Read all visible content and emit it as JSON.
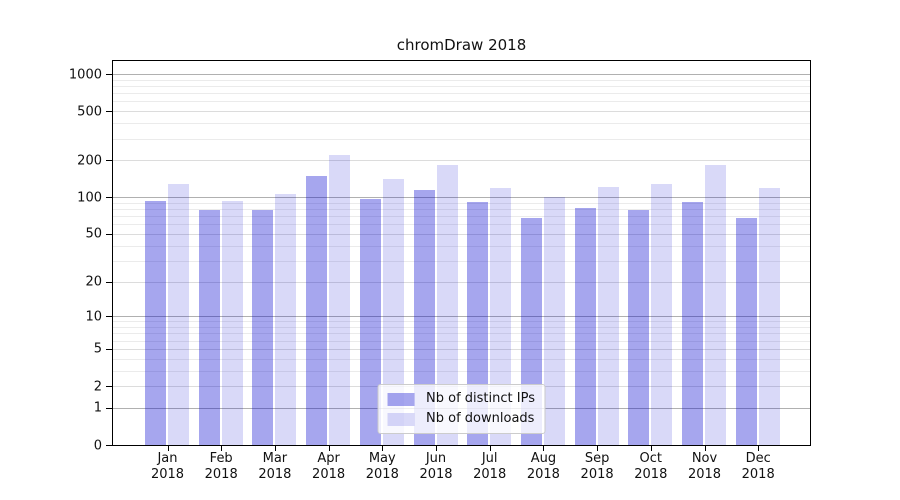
{
  "chart_data": {
    "type": "bar",
    "title": "chromDraw 2018",
    "categories": [
      "Jan",
      "Feb",
      "Mar",
      "Apr",
      "May",
      "Jun",
      "Jul",
      "Aug",
      "Sep",
      "Oct",
      "Nov",
      "Dec"
    ],
    "category_year_line": "2018",
    "series": [
      {
        "name": "Nb of distinct IPs",
        "values": [
          93,
          79,
          79,
          148,
          96,
          114,
          92,
          67,
          81,
          79,
          91,
          68
        ],
        "color": "rgba(0,0,205,0.35)"
      },
      {
        "name": "Nb of downloads",
        "values": [
          127,
          94,
          106,
          220,
          140,
          182,
          120,
          101,
          122,
          128,
          183,
          120
        ],
        "color": "rgba(0,0,205,0.15)"
      }
    ],
    "y_tick_labels": [
      "0",
      "1",
      "2",
      "5",
      "10",
      "20",
      "50",
      "100",
      "200",
      "500",
      "1000"
    ],
    "y_scale": "log10(value+1)",
    "ylim": [
      0,
      1270
    ],
    "grid": "major and minor horizontal gridlines",
    "legend_position": "lower center"
  },
  "colors": {
    "bar_distinct_ips_flat": "#a6a6f0",
    "bar_downloads_flat": "#d8d8f8",
    "grid_decade": "#b0b0b0",
    "grid_labeled": "#dcdcdc",
    "grid_minor": "#ebebeb",
    "axis_spine": "#000000",
    "background": "#ffffff"
  }
}
